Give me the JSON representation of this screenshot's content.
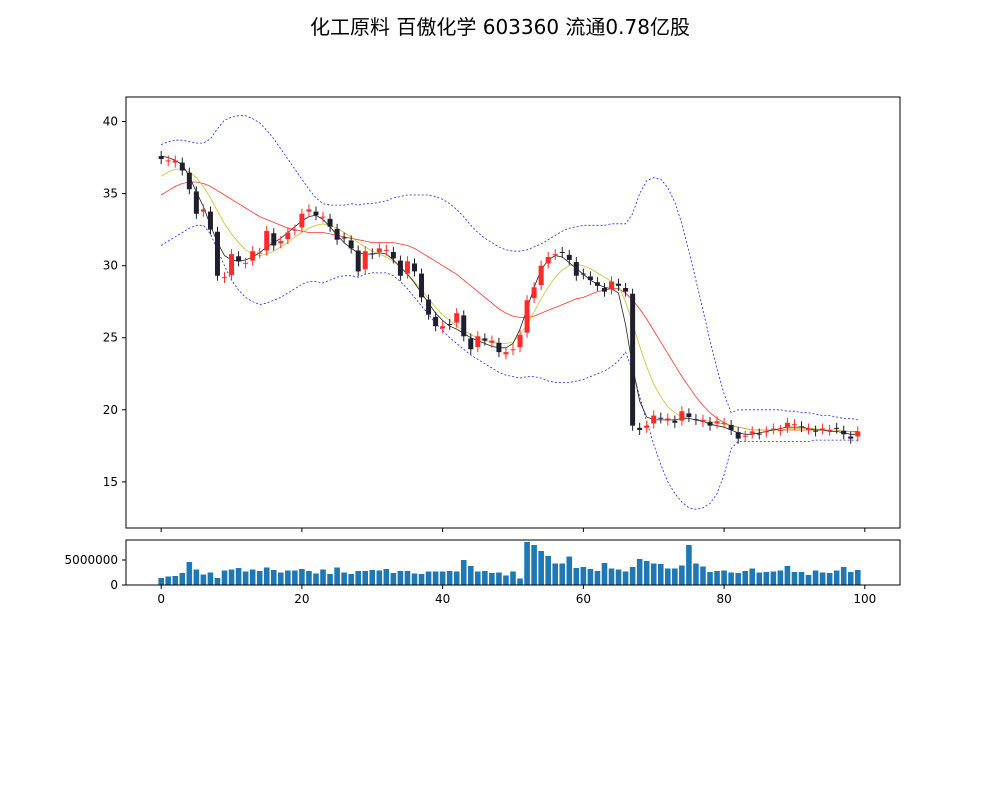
{
  "title": "化工原料 百傲化学 603360 流通0.78亿股",
  "colors": {
    "up": "#ff2b2b",
    "down": "#1f1f2e",
    "ma_short": "#222222",
    "ma_mid": "#c8c02a",
    "ma_long": "#ff3333",
    "bollinger": "#2222ff",
    "volume": "#1f77b4"
  },
  "chart_data": [
    {
      "type": "candlestick",
      "title": "",
      "xlim": [
        -5,
        105
      ],
      "ylim": [
        11.8,
        41.7
      ],
      "x_ticks": [
        0,
        20,
        40,
        60,
        80,
        100
      ],
      "y_ticks": [
        15,
        20,
        25,
        30,
        35,
        40
      ],
      "grid": false,
      "close": [
        37.4,
        37.3,
        37.3,
        36.6,
        35.3,
        33.6,
        33.9,
        32.5,
        29.3,
        29.2,
        30.8,
        30.3,
        30.2,
        31.0,
        30.9,
        32.4,
        31.4,
        31.7,
        32.3,
        32.5,
        33.6,
        33.9,
        33.5,
        33.4,
        32.7,
        31.8,
        31.9,
        31.2,
        29.6,
        31.0,
        30.8,
        31.2,
        31.1,
        30.5,
        29.3,
        30.3,
        29.6,
        27.8,
        26.6,
        25.8,
        25.8,
        25.9,
        26.7,
        25.1,
        24.2,
        25.1,
        24.8,
        24.8,
        24.0,
        24.0,
        24.2,
        25.2,
        27.6,
        28.5,
        30.0,
        30.6,
        30.8,
        30.9,
        30.4,
        29.3,
        29.4,
        29.0,
        28.6,
        28.2,
        28.9,
        28.6,
        28.2,
        18.9,
        18.6,
        18.9,
        19.6,
        19.4,
        19.4,
        19.1,
        19.9,
        19.5,
        19.3,
        19.3,
        18.9,
        19.2,
        19.1,
        18.6,
        18.0,
        18.2,
        18.5,
        18.3,
        18.5,
        18.7,
        18.6,
        19.1,
        19.0,
        18.8,
        18.7,
        18.5,
        18.7,
        18.6,
        18.7,
        18.3,
        18.0,
        18.5
      ],
      "ma_short": [
        37.6,
        37.5,
        37.3,
        37.0,
        36.2,
        35.1,
        34.1,
        32.8,
        31.6,
        30.7,
        30.4,
        30.3,
        30.4,
        30.6,
        30.9,
        31.3,
        31.6,
        31.9,
        32.3,
        32.7,
        33.1,
        33.4,
        33.5,
        33.2,
        32.7,
        32.1,
        31.6,
        31.2,
        30.9,
        30.8,
        30.8,
        30.9,
        30.8,
        30.4,
        29.9,
        29.4,
        28.8,
        28.1,
        27.4,
        26.7,
        26.2,
        25.8,
        25.6,
        25.3,
        25.0,
        24.8,
        24.6,
        24.4,
        24.3,
        24.3,
        24.6,
        25.6,
        27.0,
        28.5,
        29.7,
        30.4,
        30.7,
        30.6,
        30.2,
        29.8,
        29.4,
        29.0,
        28.7,
        28.5,
        28.4,
        28.1,
        25.9,
        23.0,
        20.6,
        19.5,
        19.3,
        19.3,
        19.3,
        19.3,
        19.4,
        19.4,
        19.3,
        19.2,
        19.0,
        18.9,
        18.8,
        18.6,
        18.4,
        18.3,
        18.3,
        18.4,
        18.5,
        18.6,
        18.7,
        18.8,
        18.8,
        18.8,
        18.7,
        18.6,
        18.6,
        18.5,
        18.5,
        18.4,
        18.3,
        18.3
      ],
      "ma_mid": [
        36.2,
        36.5,
        36.7,
        36.7,
        36.5,
        36.1,
        35.5,
        34.7,
        33.8,
        32.9,
        32.2,
        31.6,
        31.1,
        30.8,
        30.7,
        30.8,
        31.0,
        31.3,
        31.6,
        32.0,
        32.3,
        32.6,
        32.8,
        32.9,
        32.8,
        32.6,
        32.3,
        32.0,
        31.6,
        31.3,
        31.0,
        30.8,
        30.6,
        30.3,
        29.9,
        29.4,
        28.9,
        28.3,
        27.7,
        27.1,
        26.6,
        26.2,
        25.8,
        25.5,
        25.2,
        25.0,
        24.8,
        24.7,
        24.6,
        24.6,
        24.7,
        25.2,
        25.9,
        26.8,
        27.7,
        28.5,
        29.2,
        29.7,
        30.0,
        30.1,
        30.0,
        29.8,
        29.5,
        29.2,
        28.9,
        28.6,
        27.5,
        26.0,
        24.4,
        23.0,
        21.8,
        20.9,
        20.2,
        19.8,
        19.5,
        19.4,
        19.3,
        19.3,
        19.2,
        19.1,
        19.0,
        18.9,
        18.8,
        18.7,
        18.6,
        18.6,
        18.6,
        18.6,
        18.6,
        18.7,
        18.7,
        18.7,
        18.7,
        18.7,
        18.6,
        18.6,
        18.6,
        18.5,
        18.5,
        18.4
      ],
      "ma_long": [
        34.9,
        35.2,
        35.5,
        35.7,
        35.8,
        35.8,
        35.7,
        35.5,
        35.2,
        34.9,
        34.6,
        34.3,
        34.0,
        33.7,
        33.4,
        33.2,
        33.0,
        32.8,
        32.6,
        32.5,
        32.4,
        32.3,
        32.3,
        32.3,
        32.2,
        32.1,
        32.0,
        31.9,
        31.8,
        31.7,
        31.6,
        31.6,
        31.6,
        31.6,
        31.5,
        31.4,
        31.2,
        30.9,
        30.6,
        30.3,
        30.0,
        29.7,
        29.4,
        29.0,
        28.6,
        28.2,
        27.8,
        27.4,
        27.0,
        26.7,
        26.5,
        26.4,
        26.4,
        26.5,
        26.7,
        26.9,
        27.1,
        27.3,
        27.5,
        27.7,
        27.8,
        28.0,
        28.2,
        28.3,
        28.4,
        28.4,
        28.1,
        27.6,
        27.0,
        26.3,
        25.5,
        24.7,
        23.9,
        23.1,
        22.3,
        21.6,
        20.9,
        20.3,
        19.8,
        19.4,
        19.1,
        18.9,
        18.8,
        18.7,
        18.6,
        18.6,
        18.6,
        18.6,
        18.6,
        18.6,
        18.6,
        18.6,
        18.6,
        18.6,
        18.6,
        18.6,
        18.6,
        18.5,
        18.5,
        18.5
      ],
      "boll_upper": [
        38.4,
        38.6,
        38.7,
        38.7,
        38.6,
        38.5,
        38.5,
        38.8,
        39.5,
        40.1,
        40.3,
        40.4,
        40.4,
        40.2,
        39.9,
        39.4,
        38.8,
        38.1,
        37.4,
        36.7,
        36.0,
        35.3,
        34.7,
        34.3,
        34.2,
        34.2,
        34.2,
        34.3,
        34.2,
        34.3,
        34.3,
        34.4,
        34.5,
        34.7,
        34.8,
        34.9,
        34.9,
        34.9,
        34.9,
        34.8,
        34.6,
        34.3,
        33.9,
        33.4,
        32.8,
        32.3,
        31.9,
        31.6,
        31.3,
        31.1,
        31.0,
        31.0,
        31.1,
        31.3,
        31.5,
        31.8,
        32.1,
        32.4,
        32.6,
        32.7,
        32.8,
        32.8,
        32.8,
        32.8,
        32.9,
        32.9,
        32.9,
        33.6,
        35.0,
        35.9,
        36.1,
        36.0,
        35.4,
        34.4,
        32.9,
        31.0,
        29.0,
        26.9,
        24.8,
        22.8,
        21.1,
        19.8,
        20.0,
        20.0,
        20.0,
        20.0,
        20.0,
        20.0,
        20.0,
        19.9,
        19.9,
        19.8,
        19.8,
        19.7,
        19.6,
        19.6,
        19.5,
        19.4,
        19.4,
        19.3
      ],
      "boll_lower": [
        31.4,
        31.7,
        32.0,
        32.3,
        32.6,
        32.8,
        32.8,
        32.2,
        31.1,
        30.0,
        29.0,
        28.3,
        27.8,
        27.5,
        27.3,
        27.4,
        27.6,
        27.8,
        28.1,
        28.4,
        28.7,
        28.9,
        28.9,
        28.8,
        29.0,
        29.2,
        29.3,
        29.3,
        29.2,
        29.4,
        29.5,
        29.5,
        29.5,
        29.3,
        28.9,
        28.4,
        27.8,
        27.2,
        26.6,
        26.0,
        25.5,
        25.0,
        24.6,
        24.2,
        23.8,
        23.5,
        23.2,
        22.9,
        22.6,
        22.4,
        22.3,
        22.2,
        22.3,
        22.3,
        22.2,
        22.0,
        21.9,
        21.9,
        21.9,
        22.0,
        22.1,
        22.3,
        22.5,
        22.7,
        23.0,
        23.4,
        24.0,
        22.7,
        20.9,
        19.2,
        17.6,
        16.2,
        15.0,
        14.2,
        13.6,
        13.2,
        13.1,
        13.2,
        13.5,
        14.2,
        15.5,
        17.3,
        17.8,
        17.8,
        17.8,
        17.8,
        17.8,
        17.8,
        17.8,
        17.8,
        17.8,
        17.8,
        17.8,
        17.9,
        17.9,
        17.9,
        17.9,
        17.9,
        17.9,
        17.9
      ]
    },
    {
      "type": "bar",
      "title": "",
      "xlim": [
        -5,
        105
      ],
      "ylim": [
        0,
        9000000
      ],
      "x_ticks": [
        0,
        20,
        40,
        60,
        80,
        100
      ],
      "y_ticks": [
        0,
        5000000
      ],
      "grid": false,
      "values": [
        1400000,
        1700000,
        1800000,
        2400000,
        4600000,
        3100000,
        2100000,
        2500000,
        1400000,
        2900000,
        3100000,
        3400000,
        2700000,
        3100000,
        2800000,
        3500000,
        3000000,
        2500000,
        2900000,
        2900000,
        3200000,
        2800000,
        2300000,
        3100000,
        2200000,
        3500000,
        2500000,
        2200000,
        2800000,
        2800000,
        3000000,
        2900000,
        3200000,
        2400000,
        2800000,
        2800000,
        2300000,
        2200000,
        2700000,
        2700000,
        2700000,
        2800000,
        2700000,
        5000000,
        3800000,
        2700000,
        2800000,
        2400000,
        2500000,
        1900000,
        2700000,
        1300000,
        8600000,
        8000000,
        6800000,
        5800000,
        4300000,
        4300000,
        5700000,
        3400000,
        3600000,
        3200000,
        2800000,
        4400000,
        3300000,
        3100000,
        2700000,
        3600000,
        5200000,
        4800000,
        4300000,
        4200000,
        3300000,
        3300000,
        3900000,
        8000000,
        4300000,
        3700000,
        2600000,
        2800000,
        2900000,
        2500000,
        2400000,
        2800000,
        3300000,
        2500000,
        2600000,
        2700000,
        2900000,
        3800000,
        2600000,
        2600000,
        2000000,
        2900000,
        2500000,
        2400000,
        2900000,
        3600000,
        2600000,
        3000000
      ]
    }
  ]
}
